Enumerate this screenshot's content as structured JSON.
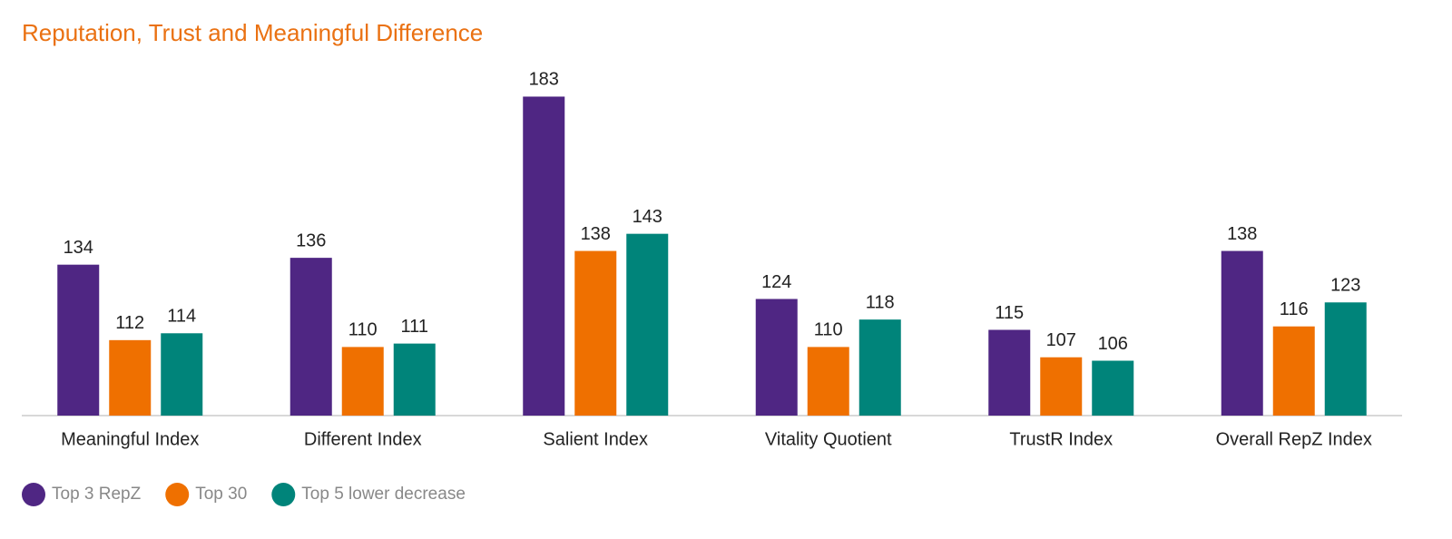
{
  "chart_data": {
    "type": "bar",
    "title": "Reputation, Trust and Meaningful Difference",
    "categories": [
      "Meaningful Index",
      "Different Index",
      "Salient Index",
      "Vitality Quotient",
      "TrustR Index",
      "Overall RepZ Index"
    ],
    "series": [
      {
        "name": "Top 3 RepZ",
        "color": "#4f2683",
        "values": [
          134,
          136,
          183,
          124,
          115,
          138
        ]
      },
      {
        "name": "Top 30",
        "color": "#ef7000",
        "values": [
          112,
          110,
          138,
          110,
          107,
          116
        ]
      },
      {
        "name": "Top 5 lower decrease",
        "color": "#00847a",
        "values": [
          114,
          111,
          143,
          118,
          106,
          123
        ]
      }
    ],
    "ylim": [
      90,
      190
    ],
    "grid": false
  }
}
